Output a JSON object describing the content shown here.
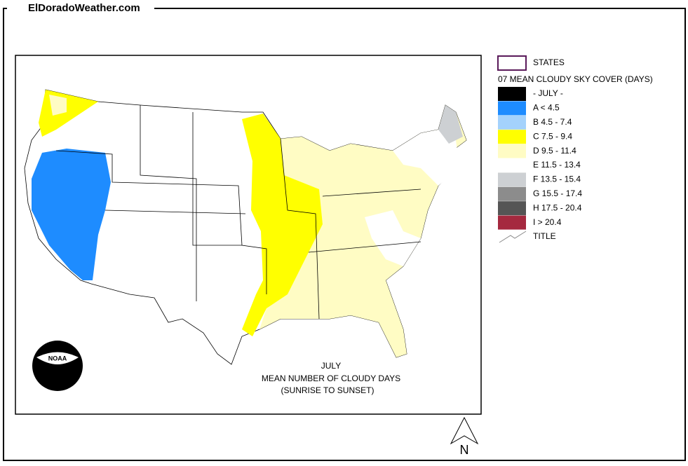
{
  "header": {
    "site": "ElDoradoWeather.com"
  },
  "legend": {
    "states": "STATES",
    "title": "07 MEAN CLOUDY SKY COVER (DAYS)",
    "items": [
      {
        "label": "- JULY -",
        "color": "#000000"
      },
      {
        "label": "A < 4.5",
        "color": "#1e8cff"
      },
      {
        "label": "B 4.5 - 7.4",
        "color": "#a4d2fc"
      },
      {
        "label": "C 7.5 - 9.4",
        "color": "#ffff00"
      },
      {
        "label": "D 9.5 - 11.4",
        "color": "#fffcc4"
      },
      {
        "label": "E 11.5 - 13.4",
        "color": "#ffffff"
      },
      {
        "label": "F 13.5 - 15.4",
        "color": "#cdd0d3"
      },
      {
        "label": "G 15.5 - 17.4",
        "color": "#8c8c8c"
      },
      {
        "label": "H 17.5 - 20.4",
        "color": "#555555"
      },
      {
        "label": "I > 20.4",
        "color": "#a5293f"
      }
    ],
    "title_symbol": "TITLE"
  },
  "map": {
    "title_lines": [
      "JULY",
      "MEAN NUMBER OF CLOUDY DAYS",
      "(SUNRISE TO SUNSET)"
    ],
    "logo": "NOAA",
    "north": "N"
  }
}
